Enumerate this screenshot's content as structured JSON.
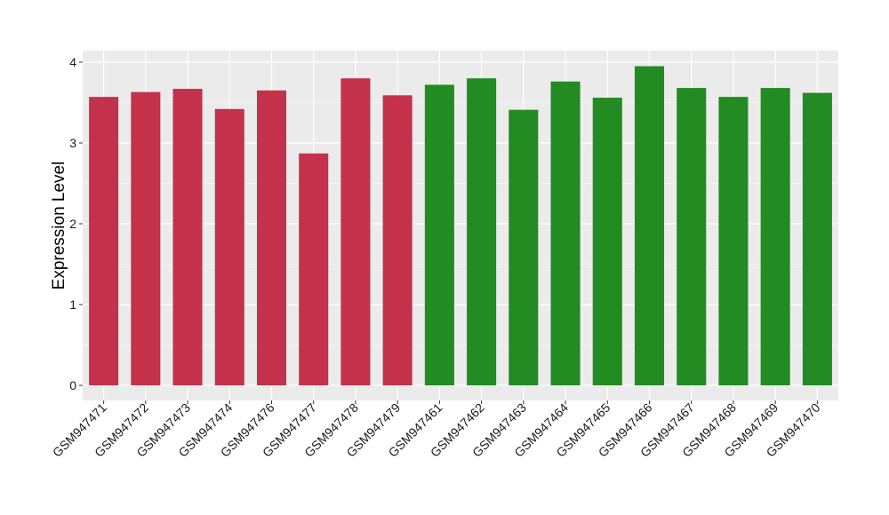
{
  "chart_data": {
    "type": "bar",
    "title": "",
    "xlabel": "",
    "ylabel": "Expression Level",
    "ylim": [
      0,
      4
    ],
    "yticks": [
      0,
      1,
      2,
      3,
      4
    ],
    "grid": true,
    "legend": "none",
    "categories": [
      "GSM947471",
      "GSM947472",
      "GSM947473",
      "GSM947474",
      "GSM947476",
      "GSM947477",
      "GSM947478",
      "GSM947479",
      "GSM947461",
      "GSM947462",
      "GSM947463",
      "GSM947464",
      "GSM947465",
      "GSM947466",
      "GSM947467",
      "GSM947468",
      "GSM947469",
      "GSM947470"
    ],
    "values": [
      3.57,
      3.63,
      3.67,
      3.42,
      3.65,
      2.87,
      3.8,
      3.59,
      3.72,
      3.8,
      3.41,
      3.76,
      3.56,
      3.95,
      3.68,
      3.57,
      3.68,
      3.62
    ],
    "bar_colors": [
      "#c4314b",
      "#c4314b",
      "#c4314b",
      "#c4314b",
      "#c4314b",
      "#c4314b",
      "#c4314b",
      "#c4314b",
      "#228b22",
      "#228b22",
      "#228b22",
      "#228b22",
      "#228b22",
      "#228b22",
      "#228b22",
      "#228b22",
      "#228b22",
      "#228b22"
    ],
    "panel_color": "#ebebeb",
    "grid_color": "#ffffff"
  }
}
